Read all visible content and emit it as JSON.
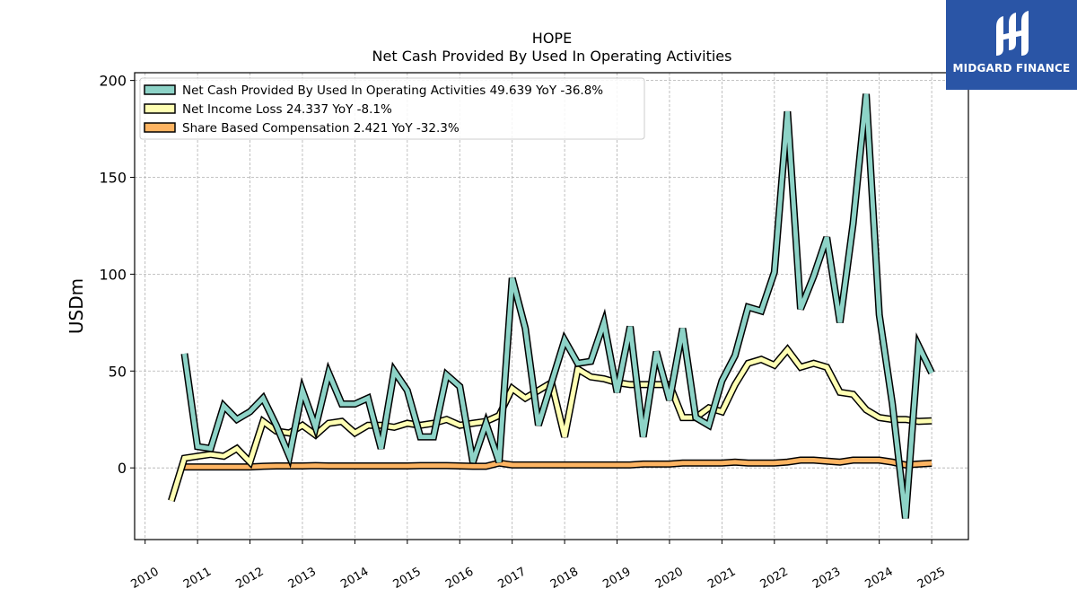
{
  "chart_data": {
    "type": "line",
    "title": "HOPE",
    "subtitle": "Net Cash Provided By Used In Operating Activities",
    "ylabel": "USDm",
    "xlabel": "",
    "xlim": [
      2009.8,
      2025.7
    ],
    "ylim": [
      -37,
      204
    ],
    "yticks": [
      0,
      50,
      100,
      150,
      200
    ],
    "xticks": [
      "2010",
      "2011",
      "2012",
      "2013",
      "2014",
      "2015",
      "2016",
      "2017",
      "2018",
      "2019",
      "2020",
      "2021",
      "2022",
      "2023",
      "2024",
      "2025"
    ],
    "grid": true,
    "legend_position": "top-left",
    "series": [
      {
        "name": "Net Cash Provided By Used In Operating Activities",
        "legend": "Net Cash Provided By Used In Operating Activities  49.639 YoY -36.8%",
        "color": "#8dd3c7",
        "x": [
          2010.75,
          2011.0,
          2011.25,
          2011.5,
          2011.75,
          2012.0,
          2012.25,
          2012.5,
          2012.75,
          2013.0,
          2013.25,
          2013.5,
          2013.75,
          2014.0,
          2014.25,
          2014.5,
          2014.75,
          2015.0,
          2015.25,
          2015.5,
          2015.75,
          2016.0,
          2016.25,
          2016.5,
          2016.75,
          2017.0,
          2017.25,
          2017.5,
          2017.75,
          2018.0,
          2018.25,
          2018.5,
          2018.75,
          2019.0,
          2019.25,
          2019.5,
          2019.75,
          2020.0,
          2020.25,
          2020.5,
          2020.75,
          2021.0,
          2021.25,
          2021.5,
          2021.75,
          2022.0,
          2022.25,
          2022.5,
          2022.75,
          2023.0,
          2023.25,
          2023.5,
          2023.75,
          2024.0,
          2024.25,
          2024.5,
          2024.75,
          2025.0
        ],
        "y": [
          59,
          11,
          10,
          32,
          25,
          29,
          36,
          22,
          6,
          40,
          21,
          49,
          33,
          33,
          36,
          10,
          50,
          40,
          16,
          16,
          48,
          42,
          3,
          23,
          3,
          98,
          72,
          22,
          44,
          66,
          54,
          55,
          75,
          39,
          73,
          16,
          60,
          35,
          72,
          26,
          22,
          45,
          58,
          83,
          81,
          101,
          184,
          82,
          99,
          119,
          75,
          126,
          193,
          79,
          33,
          -26,
          63,
          49
        ]
      },
      {
        "name": "Net Income Loss",
        "legend": "Net Income Loss  24.337 YoY -8.1%",
        "color": "#ffffb3",
        "x": [
          2010.5,
          2010.75,
          2011.0,
          2011.25,
          2011.5,
          2011.75,
          2012.0,
          2012.25,
          2012.5,
          2012.75,
          2013.0,
          2013.25,
          2013.5,
          2013.75,
          2014.0,
          2014.25,
          2014.5,
          2014.75,
          2015.0,
          2015.25,
          2015.5,
          2015.75,
          2016.0,
          2016.25,
          2016.5,
          2016.75,
          2017.0,
          2017.25,
          2017.5,
          2017.75,
          2018.0,
          2018.25,
          2018.5,
          2018.75,
          2019.0,
          2019.25,
          2019.5,
          2019.75,
          2020.0,
          2020.25,
          2020.5,
          2020.75,
          2021.0,
          2021.25,
          2021.5,
          2021.75,
          2022.0,
          2022.25,
          2022.5,
          2022.75,
          2023.0,
          2023.25,
          2023.5,
          2023.75,
          2024.0,
          2024.25,
          2024.5,
          2024.75,
          2025.0
        ],
        "y": [
          -17,
          5,
          6,
          7,
          6,
          10,
          3,
          24,
          19,
          18,
          22,
          17,
          23,
          24,
          18,
          22,
          22,
          21,
          23,
          22,
          23,
          25,
          22,
          23,
          24,
          27,
          41,
          36,
          40,
          44,
          16,
          51,
          47,
          46,
          44,
          43,
          43,
          43,
          43,
          26,
          26,
          31,
          29,
          43,
          54,
          56,
          53,
          61,
          52,
          54,
          52,
          39,
          38,
          30,
          26,
          25,
          25,
          24,
          24.3
        ]
      },
      {
        "name": "Share Based Compensation",
        "legend": "Share Based Compensation  2.421 YoY -32.3%",
        "color": "#fdb462",
        "x": [
          2010.75,
          2011.0,
          2011.25,
          2011.5,
          2011.75,
          2012.0,
          2012.25,
          2012.5,
          2012.75,
          2013.0,
          2013.25,
          2013.5,
          2013.75,
          2014.0,
          2014.25,
          2014.5,
          2014.75,
          2015.0,
          2015.25,
          2015.5,
          2015.75,
          2016.0,
          2016.25,
          2016.5,
          2016.75,
          2017.0,
          2017.25,
          2017.5,
          2017.75,
          2018.0,
          2018.25,
          2018.5,
          2018.75,
          2019.0,
          2019.25,
          2019.5,
          2019.75,
          2020.0,
          2020.25,
          2020.5,
          2020.75,
          2021.0,
          2021.25,
          2021.5,
          2021.75,
          2022.0,
          2022.25,
          2022.5,
          2022.75,
          2023.0,
          2023.25,
          2023.5,
          2023.75,
          2024.0,
          2024.25,
          2024.5,
          2024.75,
          2025.0
        ],
        "y": [
          0.5,
          0.5,
          0.5,
          0.5,
          0.5,
          0.5,
          0.8,
          1,
          1,
          1,
          1.2,
          1,
          1,
          1,
          1,
          1,
          1,
          1,
          1.2,
          1.2,
          1.2,
          1,
          0.8,
          0.8,
          2.5,
          1.5,
          1.5,
          1.5,
          1.5,
          1.5,
          1.5,
          1.5,
          1.5,
          1.5,
          1.5,
          2,
          2,
          2,
          2.5,
          2.5,
          2.5,
          2.5,
          3,
          2.5,
          2.5,
          2.5,
          3,
          4,
          4,
          3.5,
          3,
          4,
          4,
          4,
          3,
          1.5,
          2,
          2.4
        ]
      }
    ]
  },
  "logo": {
    "name": "MIDGARD FINANCE"
  }
}
